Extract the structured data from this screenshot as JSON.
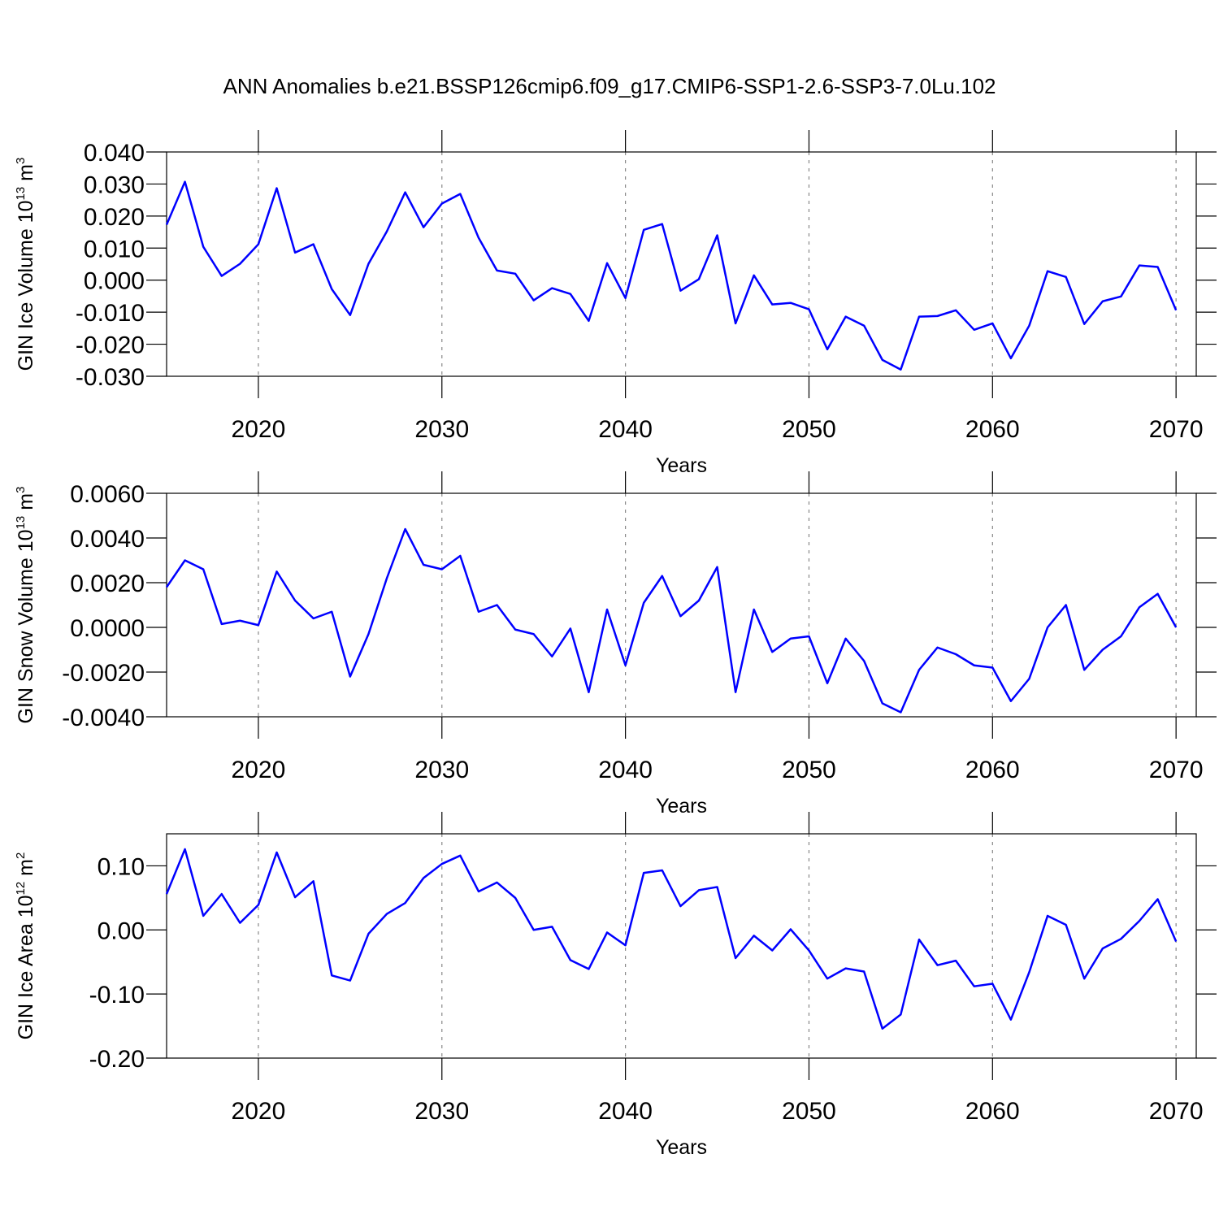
{
  "title": "ANN Anomalies b.e21.BSSP126cmip6.f09_g17.CMIP6-SSP1-2.6-SSP3-7.0Lu.102",
  "chart_data": [
    {
      "type": "line",
      "xlabel": "Years",
      "ylabel": {
        "text": "GIN Ice Volume 10",
        "power": "13",
        "unit": "m",
        "unit_power": "3"
      },
      "x": [
        2015,
        2016,
        2017,
        2018,
        2019,
        2020,
        2021,
        2022,
        2023,
        2024,
        2025,
        2026,
        2027,
        2028,
        2029,
        2030,
        2031,
        2032,
        2033,
        2034,
        2035,
        2036,
        2037,
        2038,
        2039,
        2040,
        2041,
        2042,
        2043,
        2044,
        2045,
        2046,
        2047,
        2048,
        2049,
        2050,
        2051,
        2052,
        2053,
        2054,
        2055,
        2056,
        2057,
        2058,
        2059,
        2060,
        2061,
        2062,
        2063,
        2064,
        2065,
        2066,
        2067,
        2068,
        2069,
        2070
      ],
      "series": [
        {
          "color": "#0000ff",
          "values": [
            0.0173,
            0.0307,
            0.0104,
            0.0013,
            0.0051,
            0.0112,
            0.0287,
            0.0086,
            0.0112,
            -0.0028,
            -0.0109,
            0.0051,
            0.0152,
            0.0274,
            0.0165,
            0.0239,
            0.0269,
            0.0132,
            0.003,
            0.002,
            -0.0063,
            -0.0025,
            -0.0043,
            -0.0127,
            0.0053,
            -0.0056,
            0.0157,
            0.0175,
            -0.0033,
            0.0003,
            0.014,
            -0.0135,
            0.0015,
            -0.0076,
            -0.0071,
            -0.0091,
            -0.0216,
            -0.0114,
            -0.0142,
            -0.0249,
            -0.0279,
            -0.0114,
            -0.0112,
            -0.0094,
            -0.0155,
            -0.0135,
            -0.0244,
            -0.0142,
            0.0028,
            0.001,
            -0.0137,
            -0.0066,
            -0.0051,
            0.0046,
            0.0041,
            -0.0094
          ]
        }
      ],
      "xlim": [
        2015,
        2071.1
      ],
      "xticks": [
        2020,
        2030,
        2040,
        2050,
        2060,
        2070
      ],
      "ylim": [
        -0.03,
        0.04
      ],
      "yticks": [
        {
          "value": -0.03,
          "label": "-0.030"
        },
        {
          "value": -0.02,
          "label": "-0.020"
        },
        {
          "value": -0.01,
          "label": "-0.010"
        },
        {
          "value": 0,
          "label": "0.000"
        },
        {
          "value": 0.01,
          "label": "0.010"
        },
        {
          "value": 0.02,
          "label": "0.020"
        },
        {
          "value": 0.03,
          "label": "0.030"
        },
        {
          "value": 0.04,
          "label": "0.040"
        }
      ],
      "xgrid": true
    },
    {
      "type": "line",
      "xlabel": "Years",
      "ylabel": {
        "text": "GIN Snow Volume 10",
        "power": "13",
        "unit": "m",
        "unit_power": "3"
      },
      "x": [
        2015,
        2016,
        2017,
        2018,
        2019,
        2020,
        2021,
        2022,
        2023,
        2024,
        2025,
        2026,
        2027,
        2028,
        2029,
        2030,
        2031,
        2032,
        2033,
        2034,
        2035,
        2036,
        2037,
        2038,
        2039,
        2040,
        2041,
        2042,
        2043,
        2044,
        2045,
        2046,
        2047,
        2048,
        2049,
        2050,
        2051,
        2052,
        2053,
        2054,
        2055,
        2056,
        2057,
        2058,
        2059,
        2060,
        2061,
        2062,
        2063,
        2064,
        2065,
        2066,
        2067,
        2068,
        2069,
        2070
      ],
      "series": [
        {
          "color": "#0000ff",
          "values": [
            0.0018,
            0.003,
            0.0026,
            0.00015,
            0.0003,
            0.0001,
            0.0025,
            0.0012,
            0.0004,
            0.0007,
            -0.0022,
            -0.0003,
            0.0022,
            0.0044,
            0.0028,
            0.0026,
            0.0032,
            0.0007,
            0.001,
            -0.0001,
            -0.0003,
            -0.0013,
            -5e-05,
            -0.0029,
            0.0008,
            -0.0017,
            0.0011,
            0.0023,
            0.0005,
            0.0012,
            0.0027,
            -0.0029,
            0.0008,
            -0.0011,
            -0.0005,
            -0.0004,
            -0.0025,
            -0.0005,
            -0.0015,
            -0.0034,
            -0.0038,
            -0.0019,
            -0.0009,
            -0.0012,
            -0.0017,
            -0.0018,
            -0.0033,
            -0.0023,
            0.0,
            0.001,
            -0.0019,
            -0.001,
            -0.0004,
            0.0009,
            0.0015,
            0.0
          ]
        }
      ],
      "xlim": [
        2015,
        2071.1
      ],
      "xticks": [
        2020,
        2030,
        2040,
        2050,
        2060,
        2070
      ],
      "ylim": [
        -0.004,
        0.006
      ],
      "yticks": [
        {
          "value": -0.004,
          "label": "-0.0040"
        },
        {
          "value": -0.002,
          "label": "-0.0020"
        },
        {
          "value": 0,
          "label": "0.0000"
        },
        {
          "value": 0.002,
          "label": "0.0020"
        },
        {
          "value": 0.004,
          "label": "0.0040"
        },
        {
          "value": 0.006,
          "label": "0.0060"
        }
      ],
      "xgrid": true
    },
    {
      "type": "line",
      "xlabel": "Years",
      "ylabel": {
        "text": "GIN Ice Area 10",
        "power": "12",
        "unit": "m",
        "unit_power": "2"
      },
      "x": [
        2015,
        2016,
        2017,
        2018,
        2019,
        2020,
        2021,
        2022,
        2023,
        2024,
        2025,
        2026,
        2027,
        2028,
        2029,
        2030,
        2031,
        2032,
        2033,
        2034,
        2035,
        2036,
        2037,
        2038,
        2039,
        2040,
        2041,
        2042,
        2043,
        2044,
        2045,
        2046,
        2047,
        2048,
        2049,
        2050,
        2051,
        2052,
        2053,
        2054,
        2055,
        2056,
        2057,
        2058,
        2059,
        2060,
        2061,
        2062,
        2063,
        2064,
        2065,
        2066,
        2067,
        2068,
        2069,
        2070
      ],
      "series": [
        {
          "color": "#0000ff",
          "values": [
            0.056,
            0.126,
            0.022,
            0.056,
            0.011,
            0.039,
            0.121,
            0.051,
            0.076,
            -0.071,
            -0.079,
            -0.006,
            0.025,
            0.042,
            0.081,
            0.103,
            0.116,
            0.06,
            0.074,
            0.05,
            0.0,
            0.005,
            -0.047,
            -0.061,
            -0.004,
            -0.024,
            0.089,
            0.093,
            0.037,
            0.062,
            0.067,
            -0.044,
            -0.009,
            -0.032,
            0.001,
            -0.032,
            -0.076,
            -0.06,
            -0.065,
            -0.154,
            -0.132,
            -0.015,
            -0.055,
            -0.048,
            -0.088,
            -0.084,
            -0.14,
            -0.066,
            0.022,
            0.008,
            -0.076,
            -0.029,
            -0.014,
            0.014,
            0.048,
            -0.018
          ]
        }
      ],
      "xlim": [
        2015,
        2071.1
      ],
      "xticks": [
        2020,
        2030,
        2040,
        2050,
        2060,
        2070
      ],
      "ylim": [
        -0.2,
        0.15
      ],
      "yticks": [
        {
          "value": -0.2,
          "label": "-0.20"
        },
        {
          "value": -0.1,
          "label": "-0.10"
        },
        {
          "value": 0,
          "label": "0.00"
        },
        {
          "value": 0.1,
          "label": "0.10"
        }
      ],
      "xgrid": true
    }
  ]
}
